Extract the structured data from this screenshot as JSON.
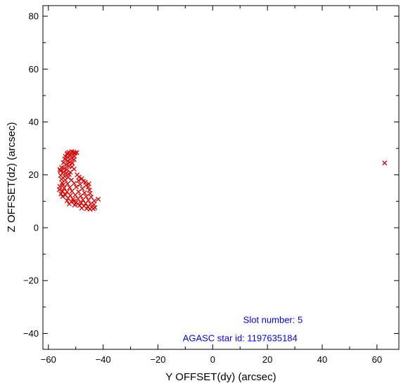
{
  "chart_data": {
    "type": "scatter",
    "title": "",
    "xlabel": "Y OFFSET(dy) (arcsec)",
    "ylabel": "Z OFFSET(dz) (arcsec)",
    "xlim": [
      -62,
      68
    ],
    "ylim": [
      -46,
      84
    ],
    "xticks": [
      -60,
      -40,
      -20,
      0,
      20,
      40,
      60
    ],
    "yticks": [
      -40,
      -20,
      0,
      20,
      40,
      60,
      80
    ],
    "xtick_labels": [
      "−60",
      "−40",
      "−20",
      "0",
      "20",
      "40",
      "60"
    ],
    "ytick_labels": [
      "−40",
      "−20",
      "0",
      "20",
      "40",
      "60",
      "80"
    ],
    "grid": false,
    "marker": "x",
    "marker_color": "#dd0000",
    "annotations": [
      {
        "text": "Slot number: 5",
        "x": 22,
        "y": -36,
        "color": "#0000ee"
      },
      {
        "text": "AGASC star id: 1197635184",
        "x": 10,
        "y": -43,
        "color": "#0000ee"
      }
    ],
    "series": [
      {
        "points": [
          [
            -52.5,
            28.5
          ],
          [
            -51.5,
            28.8
          ],
          [
            -50.8,
            28.6
          ],
          [
            -50.2,
            28.3
          ],
          [
            -53.2,
            27.8
          ],
          [
            -52.0,
            27.4
          ],
          [
            -51.0,
            27.6
          ],
          [
            -50.5,
            27.0
          ],
          [
            -53.8,
            27.0
          ],
          [
            -52.8,
            26.5
          ],
          [
            -51.6,
            26.2
          ],
          [
            -50.6,
            25.8
          ],
          [
            -54.0,
            26.0
          ],
          [
            -53.0,
            25.2
          ],
          [
            -52.2,
            24.8
          ],
          [
            -51.2,
            24.4
          ],
          [
            -54.5,
            24.6
          ],
          [
            -53.6,
            23.8
          ],
          [
            -52.6,
            23.4
          ],
          [
            -51.4,
            23.0
          ],
          [
            -55.2,
            22.8
          ],
          [
            -54.2,
            22.4
          ],
          [
            -53.2,
            22.0
          ],
          [
            -50.6,
            22.2
          ],
          [
            -55.6,
            21.5
          ],
          [
            -54.6,
            21.0
          ],
          [
            -53.6,
            20.6
          ],
          [
            -52.4,
            20.2
          ],
          [
            -49.5,
            20.0
          ],
          [
            -55.5,
            19.8
          ],
          [
            -54.0,
            19.4
          ],
          [
            -52.8,
            19.0
          ],
          [
            -48.8,
            19.2
          ],
          [
            -47.8,
            18.6
          ],
          [
            -55.2,
            18.4
          ],
          [
            -53.8,
            18.0
          ],
          [
            -51.6,
            18.0
          ],
          [
            -49.0,
            17.8
          ],
          [
            -47.2,
            17.6
          ],
          [
            -46.5,
            17.2
          ],
          [
            -55.0,
            17.0
          ],
          [
            -53.0,
            16.6
          ],
          [
            -50.6,
            16.8
          ],
          [
            -48.4,
            16.4
          ],
          [
            -46.2,
            16.0
          ],
          [
            -45.5,
            15.4
          ],
          [
            -55.8,
            15.6
          ],
          [
            -54.2,
            15.0
          ],
          [
            -52.2,
            15.2
          ],
          [
            -49.8,
            15.4
          ],
          [
            -47.6,
            14.8
          ],
          [
            -45.0,
            14.2
          ],
          [
            -56.0,
            14.4
          ],
          [
            -54.8,
            13.8
          ],
          [
            -53.2,
            13.6
          ],
          [
            -51.4,
            13.8
          ],
          [
            -49.0,
            13.6
          ],
          [
            -46.8,
            13.2
          ],
          [
            -44.8,
            13.0
          ],
          [
            -55.4,
            12.8
          ],
          [
            -53.8,
            12.4
          ],
          [
            -52.0,
            12.2
          ],
          [
            -50.2,
            12.4
          ],
          [
            -48.2,
            12.0
          ],
          [
            -46.2,
            11.8
          ],
          [
            -44.4,
            11.6
          ],
          [
            -54.8,
            11.8
          ],
          [
            -52.8,
            11.2
          ],
          [
            -51.0,
            10.8
          ],
          [
            -49.2,
            11.0
          ],
          [
            -47.4,
            10.6
          ],
          [
            -45.4,
            10.4
          ],
          [
            -43.2,
            10.2
          ],
          [
            -41.8,
            10.8
          ],
          [
            -53.2,
            10.2
          ],
          [
            -51.6,
            9.8
          ],
          [
            -49.8,
            9.6
          ],
          [
            -48.0,
            9.4
          ],
          [
            -46.4,
            9.2
          ],
          [
            -44.6,
            9.0
          ],
          [
            -43.4,
            8.8
          ],
          [
            -52.4,
            9.0
          ],
          [
            -50.4,
            8.6
          ],
          [
            -48.6,
            8.4
          ],
          [
            -47.0,
            8.2
          ],
          [
            -45.6,
            8.0
          ],
          [
            -44.2,
            7.8
          ],
          [
            -43.0,
            7.6
          ],
          [
            -47.8,
            7.4
          ],
          [
            -46.0,
            7.2
          ],
          [
            -44.8,
            7.0
          ],
          [
            -43.6,
            7.2
          ],
          [
            -49.2,
            9.0
          ],
          [
            -50.8,
            10.0
          ],
          [
            -54.6,
            16.2
          ],
          [
            -52.0,
            21.0
          ],
          [
            -53.0,
            28.2
          ],
          [
            -49.6,
            28.4
          ],
          [
            -55.8,
            22.0
          ],
          [
            -45.2,
            16.6
          ],
          [
            62.8,
            24.5
          ]
        ]
      }
    ]
  }
}
